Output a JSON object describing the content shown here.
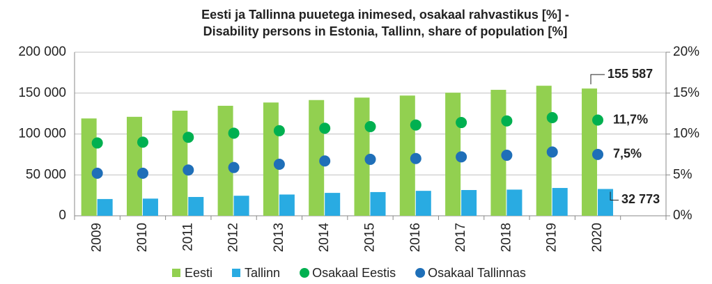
{
  "chart_data": {
    "type": "bar",
    "title": "Eesti ja Tallinna puuetega inimesed, osakaal rahvastikus [%] -",
    "subtitle": "Disability persons in Estonia, Tallinn, share of population [%]",
    "categories": [
      "2009",
      "2010",
      "2011",
      "2012",
      "2013",
      "2014",
      "2015",
      "2016",
      "2017",
      "2018",
      "2019",
      "2020",
      null
    ],
    "series": [
      {
        "name": "Eesti",
        "color": "#92d050",
        "kind": "bar",
        "values": [
          119000,
          121000,
          128500,
          134500,
          138500,
          141500,
          144500,
          147000,
          150500,
          154000,
          159000,
          155587,
          null
        ],
        "value_labels": [
          null,
          null,
          null,
          null,
          null,
          null,
          null,
          null,
          null,
          null,
          null,
          "155 587",
          null
        ]
      },
      {
        "name": "Tallinn",
        "color": "#29abe2",
        "kind": "bar",
        "values": [
          20500,
          21000,
          23000,
          24500,
          26000,
          28000,
          29000,
          30500,
          31500,
          32000,
          34000,
          32773,
          null
        ],
        "value_labels": [
          null,
          null,
          null,
          null,
          null,
          null,
          null,
          null,
          null,
          null,
          null,
          "32 773",
          null
        ]
      },
      {
        "name": "Osakaal Eestis",
        "color": "#00b050",
        "kind": "dot",
        "axis": "y2",
        "values": [
          8.9,
          9.0,
          9.6,
          10.1,
          10.4,
          10.7,
          10.9,
          11.1,
          11.4,
          11.6,
          12.0,
          11.7,
          null
        ],
        "value_labels": [
          null,
          null,
          null,
          null,
          null,
          null,
          null,
          null,
          null,
          null,
          null,
          "11,7%",
          null
        ]
      },
      {
        "name": "Osakaal Tallinnas",
        "color": "#1f6fb8",
        "kind": "dot",
        "axis": "y2",
        "values": [
          5.2,
          5.2,
          5.6,
          5.9,
          6.3,
          6.7,
          6.9,
          7.0,
          7.2,
          7.4,
          7.8,
          7.5,
          null
        ],
        "value_labels": [
          null,
          null,
          null,
          null,
          null,
          null,
          null,
          null,
          null,
          null,
          null,
          "7,5%",
          null
        ]
      }
    ],
    "ylim": [
      0,
      200000
    ],
    "yticks": [
      0,
      {
        "value": 50000,
        "label": "50 000"
      },
      {
        "value": 100000,
        "label": "100 000"
      },
      {
        "value": 150000,
        "label": "150 000"
      },
      {
        "value": 200000,
        "label": "200 000"
      }
    ],
    "y2lim": [
      0,
      20
    ],
    "y2ticks": [
      {
        "value": 0,
        "label": "0%"
      },
      {
        "value": 5,
        "label": "5%"
      },
      {
        "value": 10,
        "label": "10%"
      },
      {
        "value": 15,
        "label": "15%"
      },
      {
        "value": 20,
        "label": "20%"
      }
    ],
    "grid": true,
    "legend": "bottom"
  }
}
